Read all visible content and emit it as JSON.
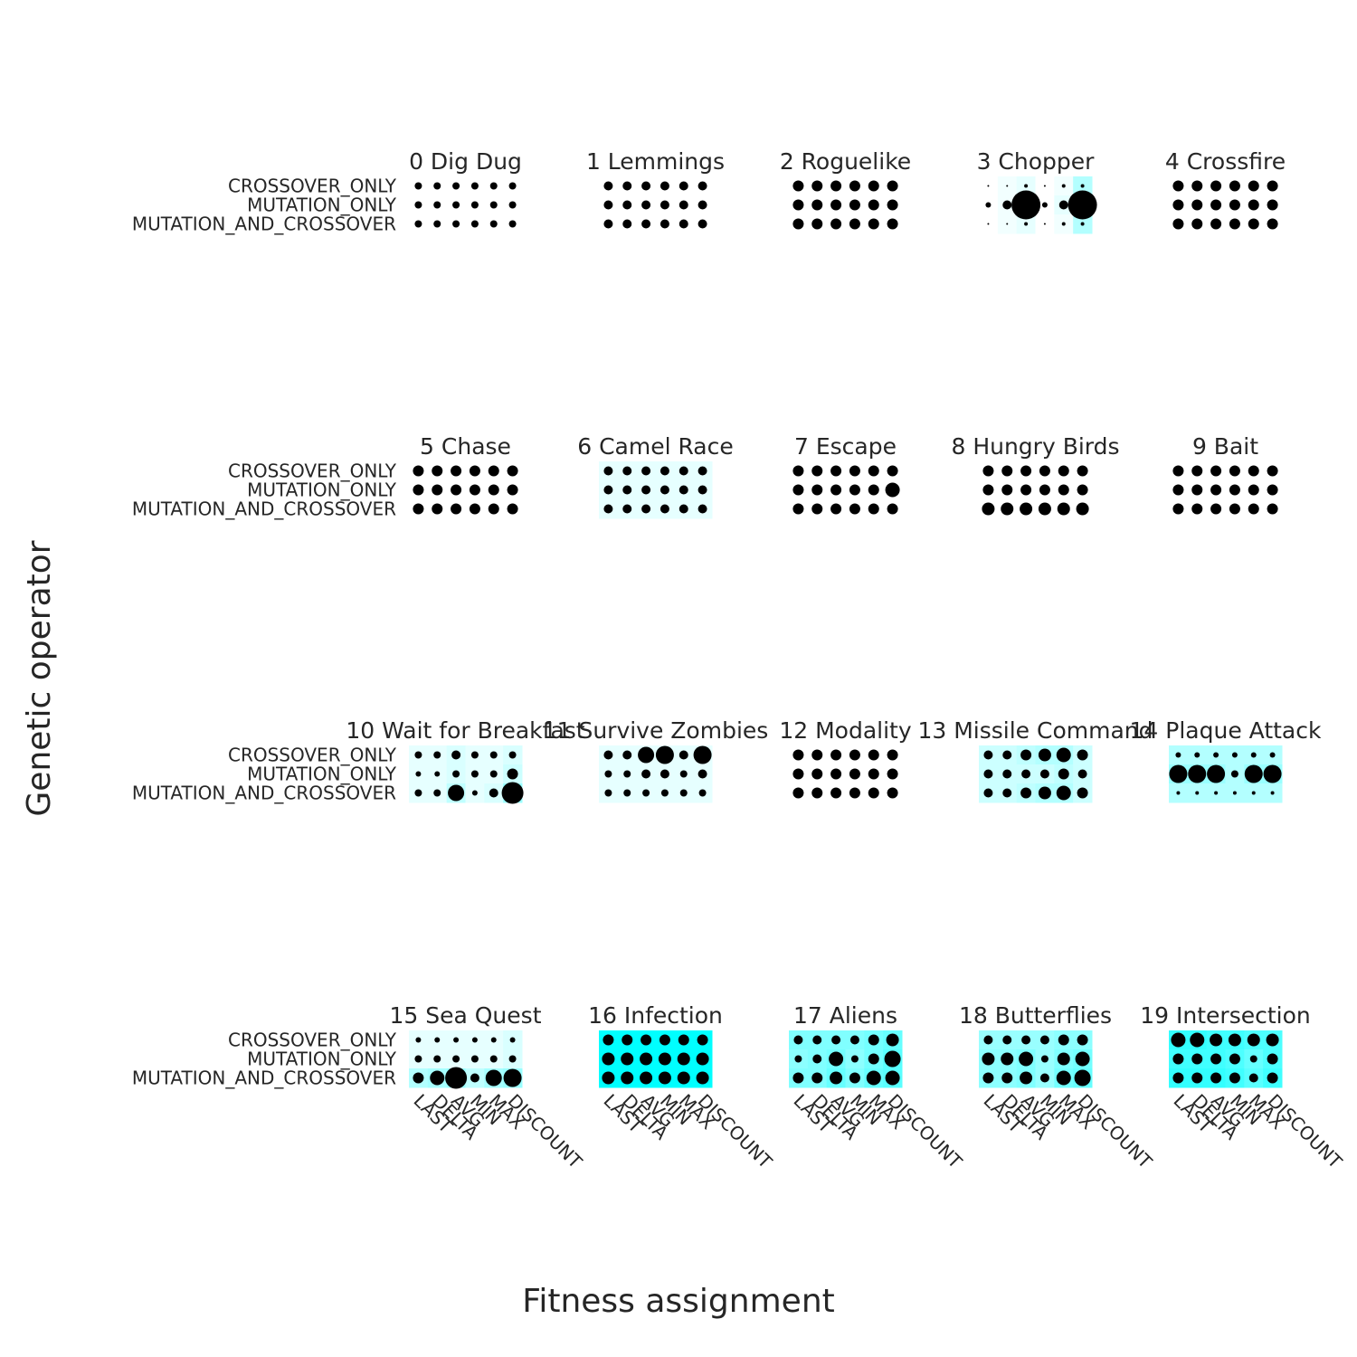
{
  "chart_data": {
    "type": "scatter",
    "description_encoding": "dot size and cell color encode a value per (fitness assignment, genetic operator) per game",
    "xlabel": "Fitness assignment",
    "ylabel": "Genetic operator",
    "x_categories": [
      "LAST",
      "DELTA",
      "AVG",
      "MIN",
      "MAX",
      "DISCOUNT"
    ],
    "y_categories": [
      "CROSSOVER_ONLY",
      "MUTATION_ONLY",
      "MUTATION_AND_CROSSOVER"
    ],
    "colors": {
      "dot": "#000000",
      "cell_high": "#00ffff",
      "cell_low": "#ffffff"
    },
    "panels": [
      {
        "title": "0 Dig Dug",
        "sizes": [
          [
            4,
            4,
            4,
            4,
            4,
            4
          ],
          [
            4,
            4,
            4,
            4,
            4,
            4
          ],
          [
            4,
            4,
            4,
            4,
            4,
            4
          ]
        ],
        "shades": [
          [
            0,
            0,
            0,
            0,
            0,
            0
          ],
          [
            0,
            0,
            0,
            0,
            0,
            0
          ],
          [
            0,
            0,
            0,
            0,
            0,
            0
          ]
        ]
      },
      {
        "title": "1 Lemmings",
        "sizes": [
          [
            5,
            5,
            5,
            5,
            5,
            5
          ],
          [
            5,
            5,
            5,
            5,
            5,
            5
          ],
          [
            5,
            5,
            5,
            5,
            5,
            5
          ]
        ],
        "shades": [
          [
            0,
            0,
            0,
            0,
            0,
            0
          ],
          [
            0,
            0,
            0,
            0,
            0,
            0
          ],
          [
            0,
            0,
            0,
            0,
            0,
            0
          ]
        ]
      },
      {
        "title": "2 Roguelike",
        "sizes": [
          [
            6,
            6,
            6,
            6,
            6,
            6
          ],
          [
            6,
            6,
            6,
            6,
            6,
            6
          ],
          [
            6,
            6,
            6,
            6,
            6,
            6
          ]
        ],
        "shades": [
          [
            0,
            0,
            0,
            0,
            0,
            0
          ],
          [
            0,
            0,
            0,
            0,
            0,
            0
          ],
          [
            0,
            0,
            0,
            0,
            0,
            0
          ]
        ]
      },
      {
        "title": "3 Chopper",
        "sizes": [
          [
            1,
            1,
            2,
            1,
            2,
            2
          ],
          [
            3,
            5,
            16,
            3,
            5,
            16
          ],
          [
            1,
            1,
            2,
            1,
            2,
            2
          ]
        ],
        "shades": [
          [
            0,
            0.05,
            0.1,
            0,
            0.05,
            0.3
          ],
          [
            0,
            0.05,
            0.15,
            0,
            0.1,
            0.4
          ],
          [
            0,
            0.05,
            0.1,
            0,
            0.05,
            0.3
          ]
        ]
      },
      {
        "title": "4 Crossfire",
        "sizes": [
          [
            6,
            6,
            6,
            6,
            6,
            6
          ],
          [
            6,
            6,
            6,
            6,
            6,
            6
          ],
          [
            6,
            6,
            6,
            6,
            6,
            6
          ]
        ],
        "shades": [
          [
            0,
            0,
            0,
            0,
            0,
            0
          ],
          [
            0,
            0,
            0,
            0,
            0,
            0
          ],
          [
            0,
            0,
            0,
            0,
            0,
            0
          ]
        ]
      },
      {
        "title": "5 Chase",
        "sizes": [
          [
            6,
            6,
            6,
            6,
            6,
            6
          ],
          [
            6,
            6,
            6,
            6,
            6,
            6
          ],
          [
            6,
            6,
            6,
            6,
            6,
            6
          ]
        ],
        "shades": [
          [
            0,
            0,
            0,
            0,
            0,
            0
          ],
          [
            0,
            0,
            0,
            0,
            0,
            0
          ],
          [
            0,
            0,
            0,
            0,
            0,
            0
          ]
        ]
      },
      {
        "title": "6 Camel Race",
        "sizes": [
          [
            5,
            5,
            5,
            5,
            5,
            5
          ],
          [
            5,
            5,
            5,
            5,
            5,
            5
          ],
          [
            5,
            5,
            5,
            5,
            5,
            5
          ]
        ],
        "shades": [
          [
            0.1,
            0.1,
            0.1,
            0.1,
            0.1,
            0.1
          ],
          [
            0.1,
            0.1,
            0.1,
            0.1,
            0.1,
            0.1
          ],
          [
            0.1,
            0.1,
            0.1,
            0.1,
            0.1,
            0.1
          ]
        ]
      },
      {
        "title": "7 Escape",
        "sizes": [
          [
            6,
            6,
            6,
            6,
            6,
            6
          ],
          [
            6,
            6,
            6,
            6,
            6,
            8
          ],
          [
            6,
            6,
            6,
            6,
            6,
            6
          ]
        ],
        "shades": [
          [
            0,
            0,
            0,
            0,
            0,
            0
          ],
          [
            0,
            0,
            0,
            0,
            0,
            0
          ],
          [
            0,
            0,
            0,
            0,
            0,
            0
          ]
        ]
      },
      {
        "title": "8 Hungry Birds",
        "sizes": [
          [
            6,
            6,
            6,
            6,
            6,
            6
          ],
          [
            6,
            6,
            6,
            6,
            6,
            6
          ],
          [
            7,
            7,
            7,
            7,
            7,
            7
          ]
        ],
        "shades": [
          [
            0,
            0,
            0,
            0,
            0,
            0
          ],
          [
            0,
            0,
            0,
            0,
            0,
            0
          ],
          [
            0,
            0,
            0,
            0,
            0,
            0
          ]
        ]
      },
      {
        "title": "9 Bait",
        "sizes": [
          [
            6,
            6,
            6,
            6,
            6,
            6
          ],
          [
            6,
            6,
            6,
            6,
            6,
            6
          ],
          [
            6,
            6,
            6,
            6,
            6,
            6
          ]
        ],
        "shades": [
          [
            0,
            0,
            0,
            0,
            0,
            0
          ],
          [
            0,
            0,
            0,
            0,
            0,
            0
          ],
          [
            0,
            0,
            0,
            0,
            0,
            0
          ]
        ]
      },
      {
        "title": "10 Wait for Breakfast",
        "sizes": [
          [
            4,
            4,
            5,
            4,
            4,
            4
          ],
          [
            3,
            3,
            4,
            4,
            4,
            6
          ],
          [
            4,
            4,
            9,
            3,
            5,
            12
          ]
        ],
        "shades": [
          [
            0.1,
            0.1,
            0.15,
            0.1,
            0.1,
            0.15
          ],
          [
            0.1,
            0.1,
            0.15,
            0.1,
            0.1,
            0.2
          ],
          [
            0.1,
            0.1,
            0.25,
            0.1,
            0.15,
            0.4
          ]
        ]
      },
      {
        "title": "11 Survive Zombies",
        "sizes": [
          [
            5,
            5,
            9,
            10,
            5,
            10
          ],
          [
            4,
            4,
            5,
            5,
            4,
            5
          ],
          [
            4,
            4,
            4,
            4,
            4,
            4
          ]
        ],
        "shades": [
          [
            0.1,
            0.1,
            0.1,
            0.1,
            0.1,
            0.1
          ],
          [
            0.1,
            0.1,
            0.1,
            0.1,
            0.1,
            0.1
          ],
          [
            0.1,
            0.1,
            0.1,
            0.1,
            0.1,
            0.1
          ]
        ]
      },
      {
        "title": "12 Modality",
        "sizes": [
          [
            6,
            6,
            6,
            6,
            6,
            6
          ],
          [
            6,
            6,
            6,
            6,
            6,
            6
          ],
          [
            6,
            6,
            6,
            6,
            6,
            6
          ]
        ],
        "shades": [
          [
            0,
            0,
            0,
            0,
            0,
            0
          ],
          [
            0,
            0,
            0,
            0,
            0,
            0
          ],
          [
            0,
            0,
            0,
            0,
            0,
            0
          ]
        ]
      },
      {
        "title": "13 Missile Command",
        "sizes": [
          [
            5,
            5,
            6,
            7,
            8,
            6
          ],
          [
            5,
            5,
            5,
            5,
            6,
            5
          ],
          [
            5,
            5,
            6,
            7,
            8,
            6
          ]
        ],
        "shades": [
          [
            0.2,
            0.2,
            0.25,
            0.3,
            0.3,
            0.2
          ],
          [
            0.2,
            0.2,
            0.2,
            0.2,
            0.25,
            0.2
          ],
          [
            0.2,
            0.2,
            0.25,
            0.3,
            0.3,
            0.2
          ]
        ]
      },
      {
        "title": "14 Plaque Attack",
        "sizes": [
          [
            3,
            3,
            3,
            3,
            3,
            3
          ],
          [
            10,
            10,
            10,
            4,
            10,
            10
          ],
          [
            2,
            2,
            2,
            2,
            2,
            2
          ]
        ],
        "shades": [
          [
            0.3,
            0.3,
            0.3,
            0.3,
            0.3,
            0.3
          ],
          [
            0.4,
            0.4,
            0.4,
            0.3,
            0.4,
            0.4
          ],
          [
            0.3,
            0.3,
            0.3,
            0.3,
            0.3,
            0.3
          ]
        ]
      },
      {
        "title": "15 Sea Quest",
        "sizes": [
          [
            3,
            3,
            3,
            3,
            3,
            3
          ],
          [
            4,
            4,
            4,
            4,
            4,
            4
          ],
          [
            6,
            8,
            12,
            5,
            9,
            10
          ]
        ],
        "shades": [
          [
            0.1,
            0.1,
            0.1,
            0.1,
            0.1,
            0.15
          ],
          [
            0.1,
            0.1,
            0.1,
            0.1,
            0.1,
            0.15
          ],
          [
            0.3,
            0.35,
            0.4,
            0.25,
            0.35,
            0.4
          ]
        ]
      },
      {
        "title": "16 Infection",
        "sizes": [
          [
            6,
            6,
            6,
            6,
            6,
            6
          ],
          [
            7,
            7,
            7,
            7,
            7,
            7
          ],
          [
            7,
            7,
            7,
            7,
            7,
            7
          ]
        ],
        "shades": [
          [
            1,
            1,
            1,
            1,
            1,
            1
          ],
          [
            1,
            1,
            1,
            1,
            1,
            1
          ],
          [
            1,
            1,
            1,
            1,
            1,
            1
          ]
        ]
      },
      {
        "title": "17 Aliens",
        "sizes": [
          [
            5,
            5,
            5,
            5,
            6,
            7
          ],
          [
            4,
            5,
            8,
            4,
            6,
            9
          ],
          [
            6,
            6,
            7,
            6,
            8,
            8
          ]
        ],
        "shades": [
          [
            0.5,
            0.5,
            0.5,
            0.5,
            0.55,
            0.6
          ],
          [
            0.45,
            0.5,
            0.55,
            0.45,
            0.55,
            0.65
          ],
          [
            0.5,
            0.5,
            0.6,
            0.5,
            0.6,
            0.65
          ]
        ]
      },
      {
        "title": "18 Butterflies",
        "sizes": [
          [
            5,
            5,
            5,
            5,
            6,
            6
          ],
          [
            7,
            7,
            8,
            4,
            7,
            8
          ],
          [
            6,
            6,
            7,
            5,
            8,
            9
          ]
        ],
        "shades": [
          [
            0.4,
            0.4,
            0.4,
            0.4,
            0.45,
            0.45
          ],
          [
            0.45,
            0.45,
            0.5,
            0.4,
            0.5,
            0.55
          ],
          [
            0.45,
            0.45,
            0.5,
            0.4,
            0.55,
            0.6
          ]
        ]
      },
      {
        "title": "19 Intersection",
        "sizes": [
          [
            8,
            8,
            7,
            7,
            7,
            7
          ],
          [
            6,
            6,
            6,
            6,
            4,
            6
          ],
          [
            6,
            6,
            6,
            6,
            5,
            6
          ]
        ],
        "shades": [
          [
            0.8,
            0.8,
            0.75,
            0.75,
            0.7,
            0.7
          ],
          [
            0.75,
            0.75,
            0.75,
            0.7,
            0.6,
            0.7
          ],
          [
            0.8,
            0.8,
            0.8,
            0.75,
            0.65,
            0.75
          ]
        ]
      }
    ]
  }
}
